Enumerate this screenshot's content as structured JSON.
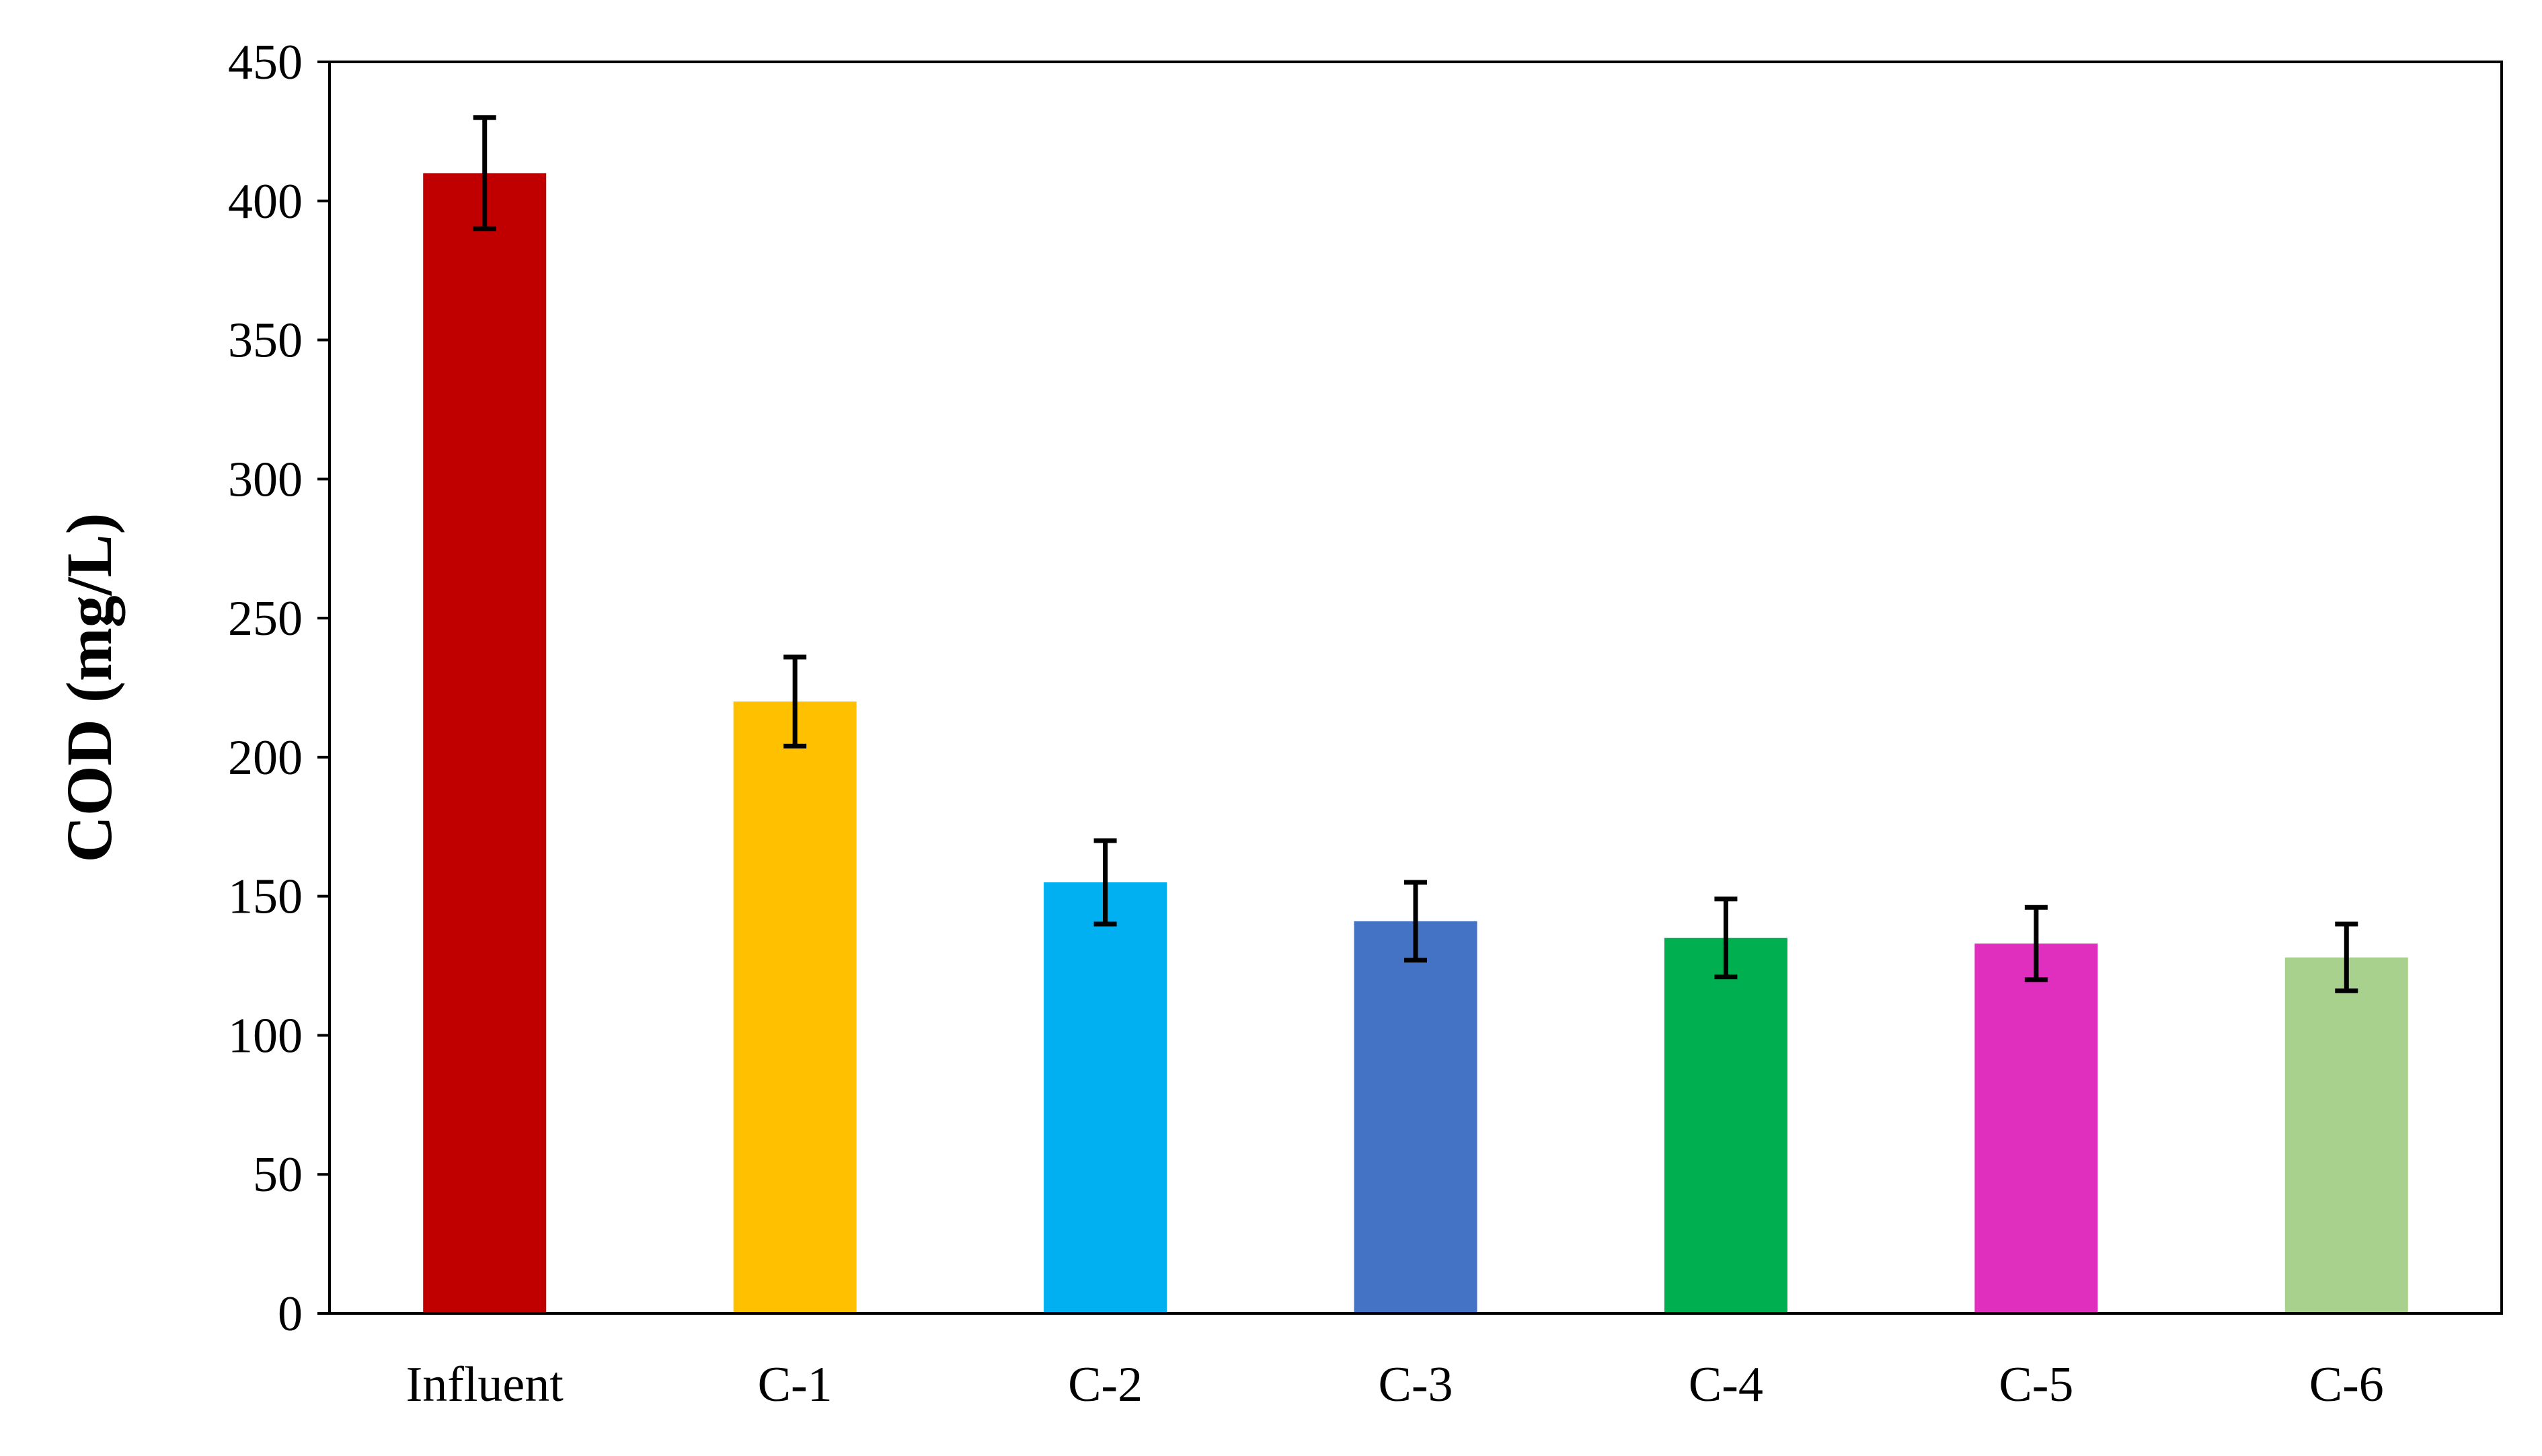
{
  "chart_data": {
    "type": "bar",
    "title": "",
    "xlabel": "",
    "ylabel": "COD (mg/L)",
    "ylim": [
      0,
      450
    ],
    "yticks": [
      0,
      50,
      100,
      150,
      200,
      250,
      300,
      350,
      400,
      450
    ],
    "grid": false,
    "categories": [
      "Influent",
      "C-1",
      "C-2",
      "C-3",
      "C-4",
      "C-5",
      "C-6"
    ],
    "values": [
      410,
      220,
      155,
      141,
      135,
      133,
      128
    ],
    "errors": [
      20,
      16,
      15,
      14,
      14,
      13,
      12
    ],
    "colors": [
      "#C00000",
      "#FFC000",
      "#00B0F0",
      "#4472C4",
      "#00B050",
      "#E02FBF",
      "#A9D18E"
    ]
  }
}
